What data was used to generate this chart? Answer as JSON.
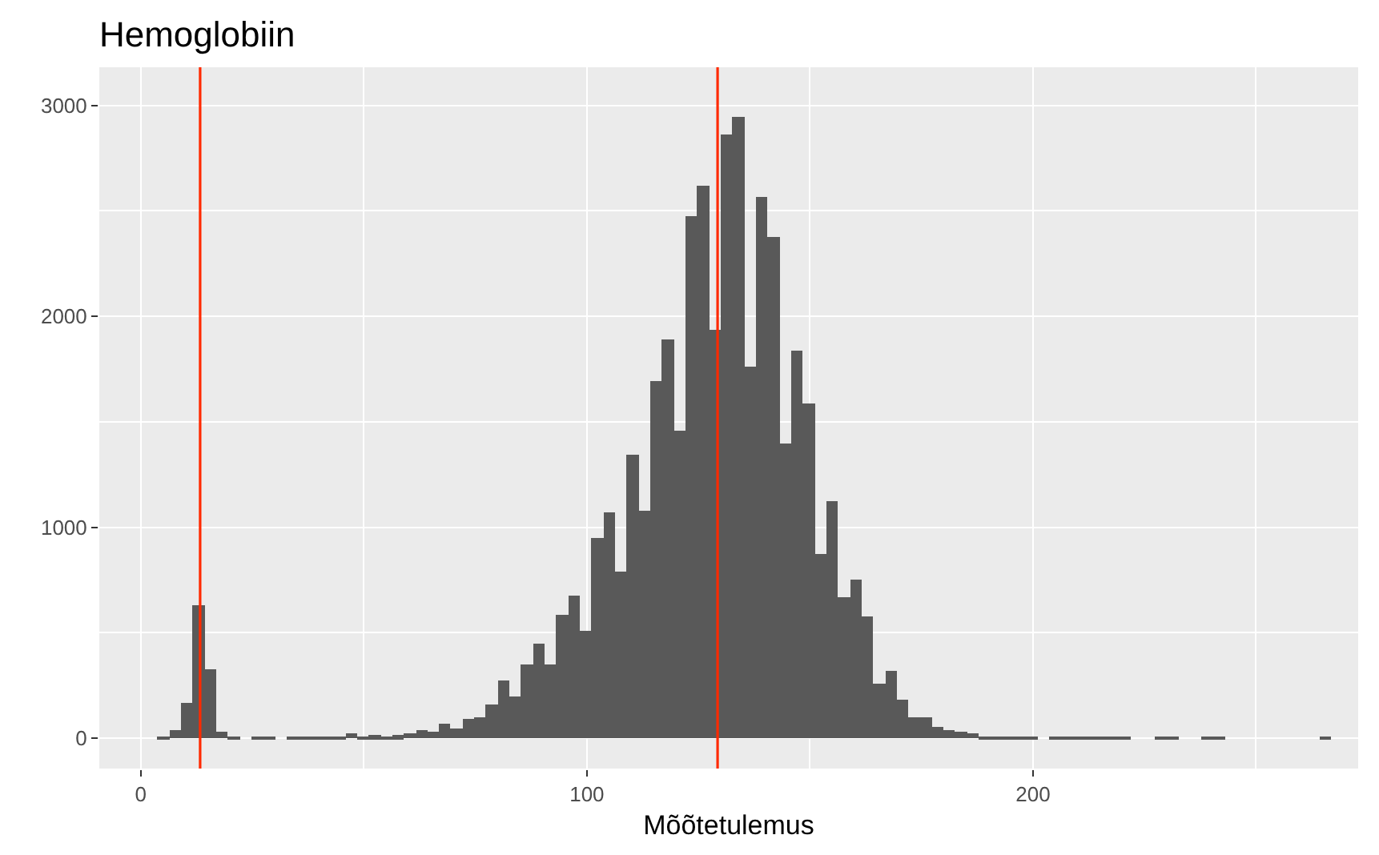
{
  "chart_data": {
    "type": "histogram",
    "title": "Hemoglobiin",
    "xlabel": "Mõõtetulemus",
    "bins": [
      3.75,
      6.38,
      9.01,
      11.64,
      14.27,
      16.9,
      19.53,
      22.16,
      24.79,
      27.42,
      30.05,
      32.68,
      35.31,
      37.94,
      40.57,
      43.2,
      45.83,
      48.46,
      51.09,
      53.72,
      56.35,
      58.98,
      61.61,
      64.24,
      66.87,
      69.5,
      72.13,
      74.76,
      77.39,
      80.02,
      82.65,
      85.28,
      87.91,
      90.54,
      93.17,
      95.8,
      98.43,
      101.06,
      103.69,
      106.32,
      108.95,
      111.58,
      114.21,
      116.84,
      119.47,
      122.1,
      124.73,
      127.36,
      129.99,
      132.62,
      135.25,
      137.88,
      140.51,
      143.14,
      145.77,
      148.4,
      151.03,
      153.66,
      156.29,
      158.92,
      161.55,
      164.18,
      166.81,
      169.44,
      172.07,
      174.7,
      177.33,
      179.96,
      182.59,
      185.22,
      187.85,
      190.48,
      193.11,
      195.74,
      198.37,
      201.0,
      203.63,
      206.26,
      208.89,
      211.52,
      214.15,
      216.78,
      219.41,
      222.04,
      224.67,
      227.3,
      229.93,
      232.56,
      235.19,
      237.82,
      240.45,
      243.08,
      245.71,
      248.34,
      250.97,
      253.6,
      256.23,
      258.86,
      261.49,
      264.12,
      266.75
    ],
    "values": [
      3,
      38,
      167,
      630,
      330,
      28,
      2,
      0,
      2,
      2,
      0,
      2,
      2,
      2,
      2,
      5,
      22,
      5,
      12,
      8,
      15,
      20,
      38,
      30,
      66,
      46,
      89,
      99,
      157,
      273,
      197,
      349,
      450,
      349,
      585,
      678,
      506,
      951,
      1071,
      790,
      1344,
      1076,
      1691,
      1888,
      1455,
      2473,
      2617,
      1939,
      2863,
      2944,
      1762,
      2564,
      2377,
      1395,
      1835,
      1587,
      871,
      1126,
      671,
      752,
      577,
      256,
      319,
      185,
      96,
      96,
      53,
      38,
      30,
      20,
      10,
      8,
      8,
      8,
      8,
      0,
      5,
      2,
      2,
      2,
      2,
      2,
      2,
      0,
      0,
      2,
      2,
      0,
      0,
      2,
      2,
      0,
      0,
      0,
      0,
      0,
      0,
      0,
      0,
      2
    ],
    "color": "#595959",
    "xlim": [
      -9.3,
      272.9
    ],
    "xticks": [
      0,
      100,
      200
    ],
    "ylim": [
      -144,
      3181
    ],
    "yticks": [
      0,
      1000,
      2000,
      3000
    ],
    "grid": true,
    "ref_lines": [
      {
        "axis": "x",
        "value": 13.3,
        "color": "#ff2a00"
      },
      {
        "axis": "x",
        "value": 129.3,
        "color": "#ff2a00"
      }
    ]
  }
}
